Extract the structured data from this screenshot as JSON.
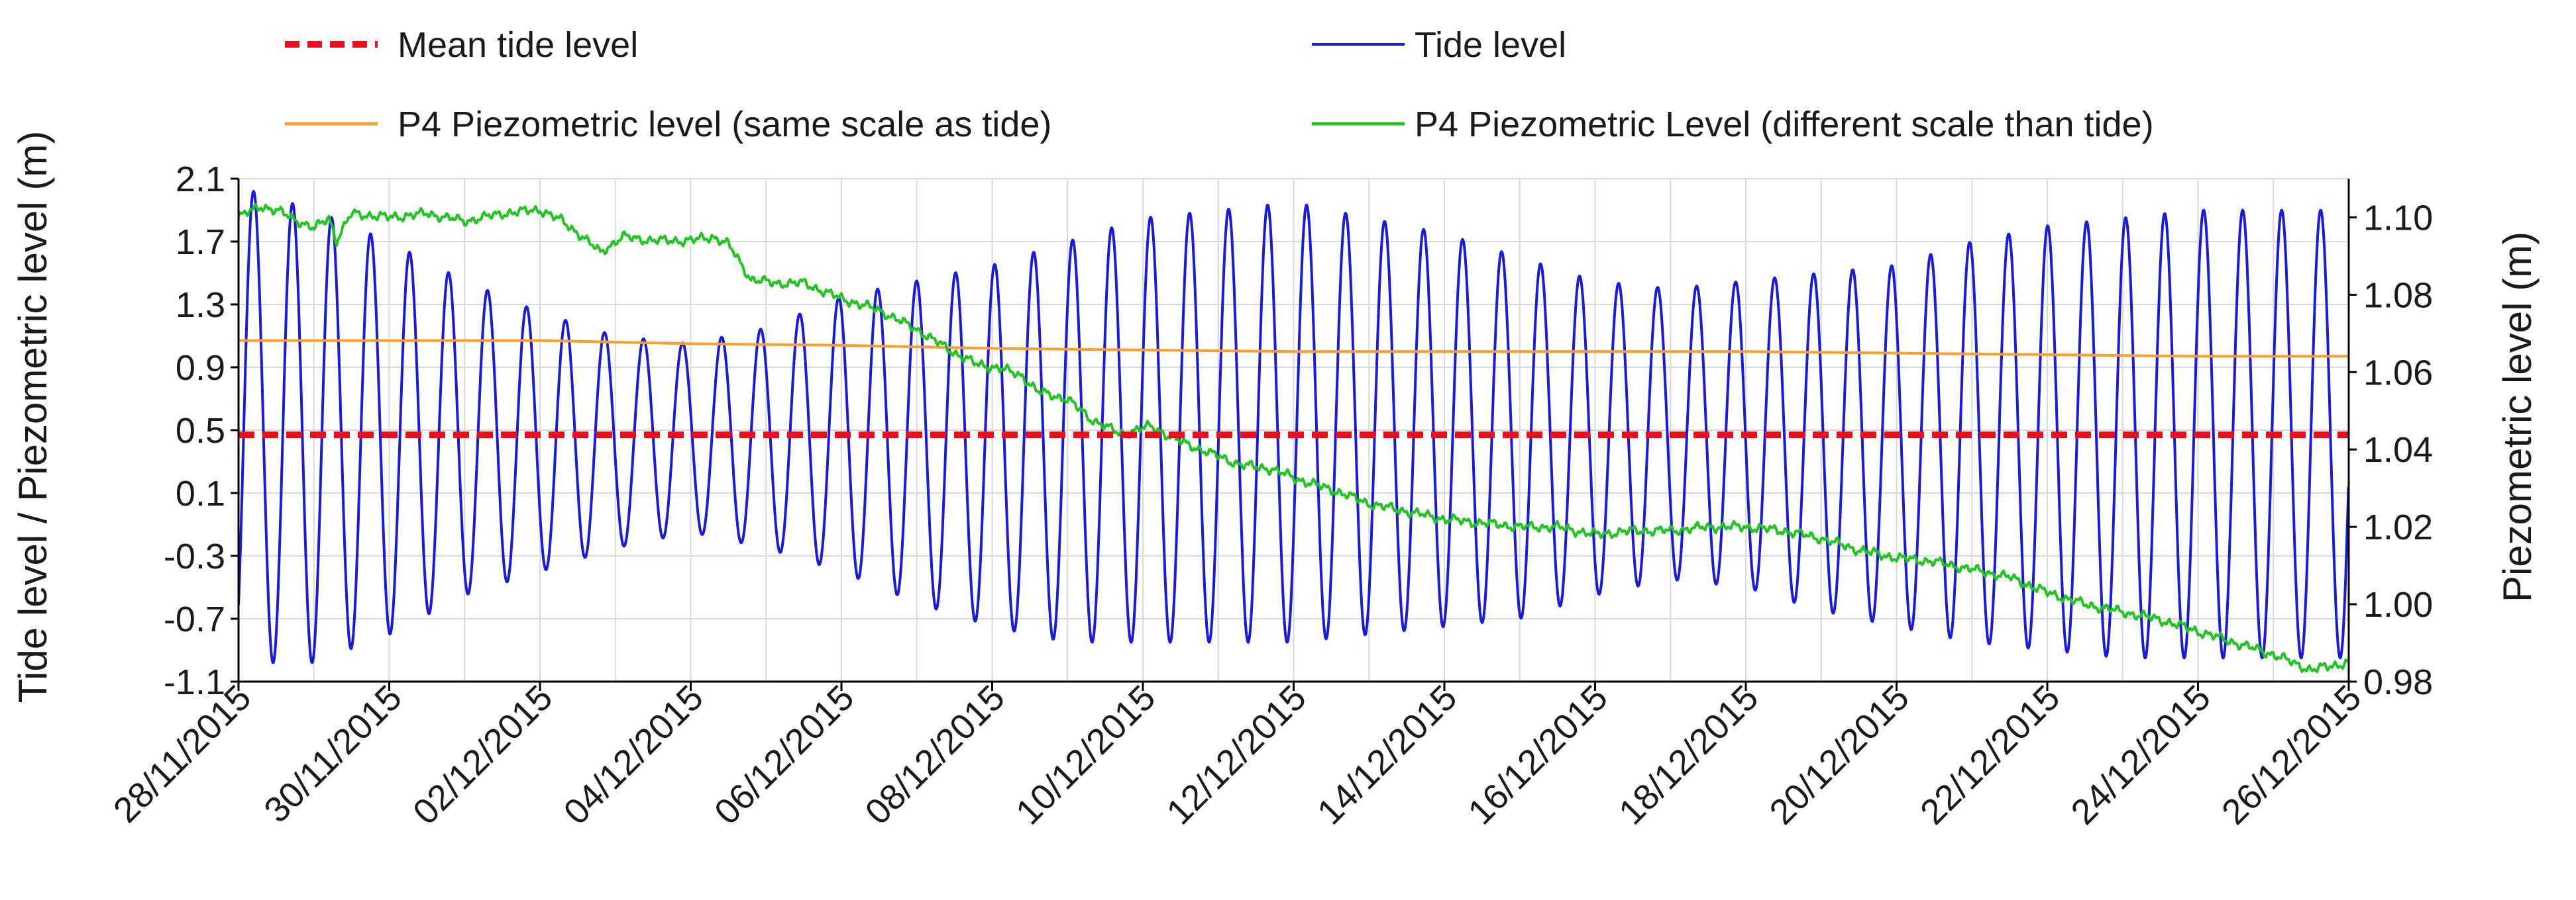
{
  "chart_data": {
    "type": "line",
    "x": {
      "start": "28/11/2015",
      "end": "26/12/2015",
      "unit": "days",
      "range": [
        0,
        28
      ],
      "tick_values": [
        0,
        2,
        4,
        6,
        8,
        10,
        12,
        14,
        16,
        18,
        20,
        22,
        24,
        26,
        28
      ],
      "tick_labels": [
        "28/11/2015",
        "30/11/2015",
        "02/12/2015",
        "04/12/2015",
        "06/12/2015",
        "08/12/2015",
        "10/12/2015",
        "12/12/2015",
        "14/12/2015",
        "16/12/2015",
        "18/12/2015",
        "20/12/2015",
        "22/12/2015",
        "24/12/2015",
        "26/12/2015"
      ],
      "minor_gridlines_per_day": true
    },
    "y_left": {
      "label": "Tide level / Piezometric level (m)",
      "range": [
        -1.1,
        2.1
      ],
      "ticks": [
        "2.1",
        "1.7",
        "1.3",
        "0.9",
        "0.5",
        "0.1",
        "-0.3",
        "-0.7",
        "-1.1"
      ]
    },
    "y_right": {
      "label": "Piezometric level (m)",
      "range": [
        0.98,
        1.11
      ],
      "ticks": [
        "1.10",
        "1.08",
        "1.06",
        "1.04",
        "1.02",
        "1.00",
        "0.98"
      ]
    },
    "series": [
      {
        "name": "Mean tide level",
        "axis": "left",
        "color": "#e8101c",
        "style": "dashed",
        "points": [
          [
            0,
            0.47
          ],
          [
            28,
            0.47
          ]
        ]
      },
      {
        "name": "Tide level",
        "axis": "left",
        "color": "#1a1adc",
        "style": "solid",
        "kind": "semidiurnal-tide",
        "period_days": 0.5175,
        "mean": 0.47,
        "first_high_day": 0.2,
        "envelope": [
          {
            "day": 0,
            "high": 2.05,
            "low": -0.98
          },
          {
            "day": 1,
            "high": 1.9,
            "low": -0.98
          },
          {
            "day": 2,
            "high": 1.7,
            "low": -0.8
          },
          {
            "day": 3,
            "high": 1.45,
            "low": -0.55
          },
          {
            "day": 4,
            "high": 1.25,
            "low": -0.4
          },
          {
            "day": 5,
            "high": 1.1,
            "low": -0.25
          },
          {
            "day": 6,
            "high": 1.05,
            "low": -0.15
          },
          {
            "day": 7,
            "high": 1.15,
            "low": -0.25
          },
          {
            "day": 8,
            "high": 1.35,
            "low": -0.4
          },
          {
            "day": 9,
            "high": 1.45,
            "low": -0.6
          },
          {
            "day": 10,
            "high": 1.55,
            "low": -0.75
          },
          {
            "day": 11,
            "high": 1.7,
            "low": -0.85
          },
          {
            "day": 12,
            "high": 1.85,
            "low": -0.85
          },
          {
            "day": 13,
            "high": 1.9,
            "low": -0.85
          },
          {
            "day": 14,
            "high": 1.95,
            "low": -0.85
          },
          {
            "day": 15,
            "high": 1.85,
            "low": -0.8
          },
          {
            "day": 16,
            "high": 1.75,
            "low": -0.75
          },
          {
            "day": 17,
            "high": 1.6,
            "low": -0.7
          },
          {
            "day": 18,
            "high": 1.45,
            "low": -0.55
          },
          {
            "day": 19,
            "high": 1.4,
            "low": -0.45
          },
          {
            "day": 20,
            "high": 1.45,
            "low": -0.5
          },
          {
            "day": 21,
            "high": 1.5,
            "low": -0.65
          },
          {
            "day": 22,
            "high": 1.55,
            "low": -0.75
          },
          {
            "day": 23,
            "high": 1.7,
            "low": -0.85
          },
          {
            "day": 24,
            "high": 1.8,
            "low": -0.9
          },
          {
            "day": 25,
            "high": 1.85,
            "low": -0.95
          },
          {
            "day": 26,
            "high": 1.9,
            "low": -0.95
          },
          {
            "day": 27,
            "high": 1.9,
            "low": -0.95
          },
          {
            "day": 28,
            "high": 1.9,
            "low": -0.95
          }
        ]
      },
      {
        "name": "P4 Piezometric level (same scale as tide)",
        "axis": "left",
        "color": "#f7a030",
        "style": "solid",
        "points": [
          [
            0,
            1.07
          ],
          [
            2,
            1.07
          ],
          [
            4,
            1.07
          ],
          [
            6,
            1.05
          ],
          [
            8,
            1.04
          ],
          [
            10,
            1.02
          ],
          [
            12,
            1.01
          ],
          [
            14,
            1.0
          ],
          [
            16,
            1.0
          ],
          [
            18,
            1.0
          ],
          [
            20,
            1.0
          ],
          [
            22,
            0.99
          ],
          [
            24,
            0.98
          ],
          [
            26,
            0.97
          ],
          [
            28,
            0.97
          ]
        ]
      },
      {
        "name": "P4 Piezometric Level (different scale than tide)",
        "axis": "right",
        "color": "#22c422",
        "style": "solid",
        "points": [
          [
            0,
            1.1
          ],
          [
            0.3,
            1.103
          ],
          [
            0.6,
            1.101
          ],
          [
            1.0,
            1.097
          ],
          [
            1.2,
            1.1
          ],
          [
            1.3,
            1.094
          ],
          [
            1.5,
            1.101
          ],
          [
            2.0,
            1.1
          ],
          [
            2.5,
            1.101
          ],
          [
            3,
            1.099
          ],
          [
            3.5,
            1.101
          ],
          [
            4,
            1.102
          ],
          [
            4.3,
            1.099
          ],
          [
            4.5,
            1.096
          ],
          [
            4.8,
            1.091
          ],
          [
            5.1,
            1.095
          ],
          [
            5.5,
            1.094
          ],
          [
            6,
            1.094
          ],
          [
            6.3,
            1.095
          ],
          [
            6.5,
            1.093
          ],
          [
            6.8,
            1.084
          ],
          [
            7.1,
            1.083
          ],
          [
            7.5,
            1.083
          ],
          [
            8,
            1.079
          ],
          [
            8.5,
            1.076
          ],
          [
            9,
            1.071
          ],
          [
            9.5,
            1.065
          ],
          [
            9.8,
            1.062
          ],
          [
            10.1,
            1.061
          ],
          [
            10.4,
            1.059
          ],
          [
            10.6,
            1.055
          ],
          [
            11.0,
            1.053
          ],
          [
            11.3,
            1.048
          ],
          [
            11.7,
            1.044
          ],
          [
            12.1,
            1.046
          ],
          [
            12.5,
            1.042
          ],
          [
            12.9,
            1.039
          ],
          [
            13.3,
            1.036
          ],
          [
            13.7,
            1.035
          ],
          [
            14.1,
            1.032
          ],
          [
            14.6,
            1.029
          ],
          [
            15.0,
            1.026
          ],
          [
            15.5,
            1.024
          ],
          [
            16.0,
            1.022
          ],
          [
            16.5,
            1.021
          ],
          [
            17.0,
            1.02
          ],
          [
            17.5,
            1.02
          ],
          [
            18,
            1.018
          ],
          [
            18.5,
            1.019
          ],
          [
            19,
            1.019
          ],
          [
            19.5,
            1.02
          ],
          [
            20,
            1.02
          ],
          [
            20.5,
            1.019
          ],
          [
            21,
            1.017
          ],
          [
            21.5,
            1.014
          ],
          [
            22,
            1.012
          ],
          [
            22.5,
            1.011
          ],
          [
            23,
            1.009
          ],
          [
            23.5,
            1.007
          ],
          [
            24,
            1.003
          ],
          [
            24.5,
            1.0
          ],
          [
            25,
            0.998
          ],
          [
            25.5,
            0.996
          ],
          [
            26,
            0.993
          ],
          [
            26.5,
            0.99
          ],
          [
            27,
            0.987
          ],
          [
            27.5,
            0.983
          ],
          [
            28,
            0.985
          ]
        ]
      }
    ]
  }
}
